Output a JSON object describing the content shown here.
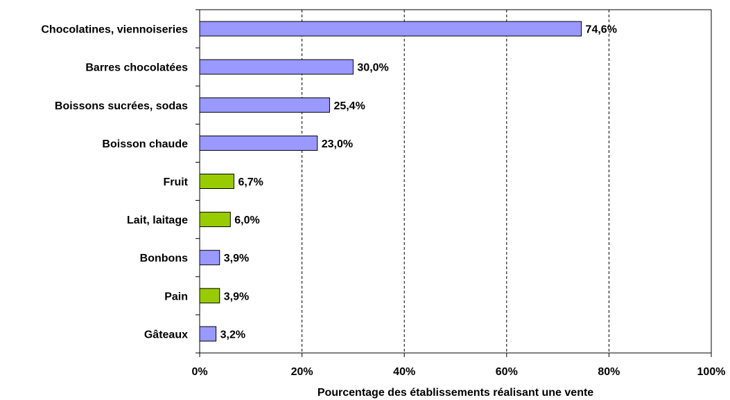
{
  "chart_data": {
    "type": "bar",
    "orientation": "horizontal",
    "categories": [
      "Chocolatines, viennoiseries",
      "Barres chocolatées",
      "Boissons sucrées, sodas",
      "Boisson chaude",
      "Fruit",
      "Lait, laitage",
      "Bonbons",
      "Pain",
      "Gâteaux"
    ],
    "values": [
      74.6,
      30.0,
      25.4,
      23.0,
      6.7,
      6.0,
      3.9,
      3.9,
      3.2
    ],
    "value_labels": [
      "74,6%",
      "30,0%",
      "25,4%",
      "23,0%",
      "6,7%",
      "6,0%",
      "3,9%",
      "3,9%",
      "3,2%"
    ],
    "bar_colors": [
      "#9999ff",
      "#9999ff",
      "#9999ff",
      "#9999ff",
      "#99cc00",
      "#99cc00",
      "#9999ff",
      "#99cc00",
      "#9999ff"
    ],
    "xlim": [
      0,
      100
    ],
    "x_ticks": [
      0,
      20,
      40,
      60,
      80,
      100
    ],
    "x_tick_labels": [
      "0%",
      "20%",
      "40%",
      "60%",
      "80%",
      "100%"
    ],
    "xlabel": "Pourcentage des établissements réalisant une vente",
    "title": "",
    "grid": "vertical dashed",
    "legend": "none"
  }
}
